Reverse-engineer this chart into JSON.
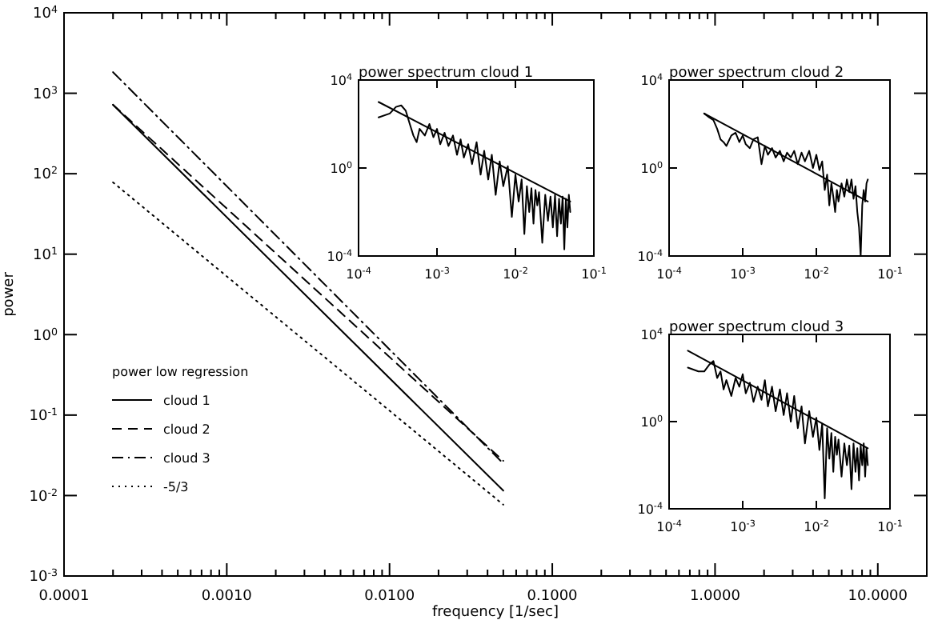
{
  "chart_data": [
    {
      "type": "line",
      "xlabel": "frequency [1/sec]",
      "ylabel": "power",
      "log": "xy",
      "xlim": [
        0.0001,
        20
      ],
      "ylim": [
        0.001,
        10000
      ],
      "xticks": [
        {
          "value": 0.0001,
          "label": "0.0001"
        },
        {
          "value": 0.0002,
          "label": null
        },
        {
          "value": 0.0003,
          "label": null
        },
        {
          "value": 0.0004,
          "label": null
        },
        {
          "value": 0.0005,
          "label": null
        },
        {
          "value": 0.0006,
          "label": null
        },
        {
          "value": 0.0007,
          "label": null
        },
        {
          "value": 0.0008,
          "label": null
        },
        {
          "value": 0.0009,
          "label": null
        },
        {
          "value": 0.001,
          "label": "0.0010"
        },
        {
          "value": 0.002,
          "label": null
        },
        {
          "value": 0.003,
          "label": null
        },
        {
          "value": 0.004,
          "label": null
        },
        {
          "value": 0.005,
          "label": null
        },
        {
          "value": 0.006,
          "label": null
        },
        {
          "value": 0.007,
          "label": null
        },
        {
          "value": 0.008,
          "label": null
        },
        {
          "value": 0.009,
          "label": null
        },
        {
          "value": 0.01,
          "label": "0.0100"
        },
        {
          "value": 0.02,
          "label": null
        },
        {
          "value": 0.03,
          "label": null
        },
        {
          "value": 0.04,
          "label": null
        },
        {
          "value": 0.05,
          "label": null
        },
        {
          "value": 0.06,
          "label": null
        },
        {
          "value": 0.07,
          "label": null
        },
        {
          "value": 0.08,
          "label": null
        },
        {
          "value": 0.09,
          "label": null
        },
        {
          "value": 0.1,
          "label": "0.1000"
        },
        {
          "value": 0.2,
          "label": null
        },
        {
          "value": 0.3,
          "label": null
        },
        {
          "value": 0.4,
          "label": null
        },
        {
          "value": 0.5,
          "label": null
        },
        {
          "value": 0.6,
          "label": null
        },
        {
          "value": 0.7,
          "label": null
        },
        {
          "value": 0.8,
          "label": null
        },
        {
          "value": 0.9,
          "label": null
        },
        {
          "value": 1,
          "label": "1.0000"
        },
        {
          "value": 2,
          "label": null
        },
        {
          "value": 3,
          "label": null
        },
        {
          "value": 4,
          "label": null
        },
        {
          "value": 5,
          "label": null
        },
        {
          "value": 6,
          "label": null
        },
        {
          "value": 7,
          "label": null
        },
        {
          "value": 8,
          "label": null
        },
        {
          "value": 9,
          "label": null
        },
        {
          "value": 10,
          "label": "10.0000"
        },
        {
          "value": 20,
          "label": null
        }
      ],
      "yticks": [
        {
          "value": 0.001,
          "label": "10$^{-3}$"
        },
        {
          "value": 0.01,
          "label": "10$^{-2}$"
        },
        {
          "value": 0.1,
          "label": "10$^{-1}$"
        },
        {
          "value": 1,
          "label": "10$^{0}$"
        },
        {
          "value": 10,
          "label": "10$^{1}$"
        },
        {
          "value": 100,
          "label": "10$^{2}$"
        },
        {
          "value": 1000,
          "label": "10$^{3}$"
        },
        {
          "value": 10000,
          "label": "10$^{4}$"
        }
      ],
      "legend": "bottom left",
      "legend_title": "power low regression",
      "series": [
        {
          "name": "cloud 1",
          "color": "#000000",
          "line_style": "solid",
          "x": [
            0.0002,
            0.05
          ],
          "values": [
            720,
            0.0115
          ]
        },
        {
          "name": "cloud 2",
          "color": "#000000",
          "line_style": "dashed",
          "x": [
            0.0002,
            0.05
          ],
          "values": [
            720,
            0.027
          ]
        },
        {
          "name": "cloud 3",
          "color": "#000000",
          "line_style": "dashdot",
          "x": [
            0.0002,
            0.05
          ],
          "values": [
            1830,
            0.025
          ]
        },
        {
          "name": "-5/3",
          "color": "#000000",
          "line_style": "dotted",
          "x": [
            0.0002,
            0.05
          ],
          "values": [
            78,
            0.0077
          ]
        }
      ]
    },
    {
      "type": "line",
      "title": "power spectrum cloud 1",
      "log": "xy",
      "xlim": [
        0.0001,
        0.1
      ],
      "ylim": [
        0.0001,
        10000
      ],
      "xticks": [
        {
          "value": 0.0001,
          "label": "10$^{-4}$"
        },
        {
          "value": 0.001,
          "label": "10$^{-3}$"
        },
        {
          "value": 0.01,
          "label": "10$^{-2}$"
        },
        {
          "value": 0.1,
          "label": "10$^{-1}$"
        }
      ],
      "yticks": [
        {
          "value": 0.0001,
          "label": "10$^{-4}$"
        },
        {
          "value": 1,
          "label": "10$^{0}$"
        },
        {
          "value": 10000,
          "label": "10$^{4}$"
        }
      ],
      "series": [
        {
          "color": "#000000",
          "line_style": "solid",
          "x": [
            0.00018,
            0.00025,
            0.0003,
            0.00035,
            0.0004,
            0.00045,
            0.0005,
            0.00055,
            0.0006,
            0.0007,
            0.0008,
            0.0009,
            0.001,
            0.0011,
            0.00125,
            0.0014,
            0.0016,
            0.0018,
            0.002,
            0.0022,
            0.0025,
            0.0028,
            0.0032,
            0.0036,
            0.004,
            0.0045,
            0.005,
            0.0056,
            0.0063,
            0.007,
            0.008,
            0.009,
            0.01,
            0.011,
            0.012,
            0.013,
            0.014,
            0.015,
            0.016,
            0.017,
            0.018,
            0.019,
            0.02,
            0.022,
            0.024,
            0.026,
            0.028,
            0.03,
            0.032,
            0.034,
            0.036,
            0.038,
            0.04,
            0.042,
            0.044,
            0.046,
            0.048,
            0.05
          ],
          "values": [
            200,
            300,
            600,
            700,
            400,
            100,
            30,
            15,
            60,
            30,
            100,
            25,
            60,
            12,
            40,
            10,
            30,
            4,
            20,
            3,
            12,
            1.5,
            15,
            0.5,
            6,
            0.3,
            4,
            0.06,
            2,
            0.15,
            1.2,
            0.006,
            0.5,
            0.03,
            0.3,
            0.001,
            0.15,
            0.01,
            0.12,
            0.003,
            0.1,
            0.02,
            0.08,
            0.0004,
            0.06,
            0.004,
            0.05,
            0.002,
            0.06,
            0.0008,
            0.04,
            0.003,
            0.05,
            0.0002,
            0.04,
            0.002,
            0.06,
            0.01
          ]
        },
        {
          "color": "#000000",
          "line_style": "solid",
          "x": [
            0.00018,
            0.05
          ],
          "values": [
            1000,
            0.03
          ]
        }
      ]
    },
    {
      "type": "line",
      "title": "power spectrum cloud 2",
      "log": "xy",
      "xlim": [
        0.0001,
        0.1
      ],
      "ylim": [
        0.0001,
        10000
      ],
      "xticks": [
        {
          "value": 0.0001,
          "label": "10$^{-4}$"
        },
        {
          "value": 0.001,
          "label": "10$^{-3}$"
        },
        {
          "value": 0.01,
          "label": "10$^{-2}$"
        },
        {
          "value": 0.1,
          "label": "10$^{-1}$"
        }
      ],
      "yticks": [
        {
          "value": 0.0001,
          "label": "10$^{-4}$"
        },
        {
          "value": 1,
          "label": "10$^{0}$"
        },
        {
          "value": 10000,
          "label": "10$^{4}$"
        }
      ],
      "series": [
        {
          "color": "#000000",
          "line_style": "solid",
          "x": [
            0.0003,
            0.00035,
            0.0004,
            0.00045,
            0.0005,
            0.00055,
            0.0006,
            0.0007,
            0.0008,
            0.0009,
            0.001,
            0.0011,
            0.00125,
            0.0014,
            0.0016,
            0.0018,
            0.002,
            0.0022,
            0.0025,
            0.0028,
            0.0032,
            0.0036,
            0.004,
            0.0045,
            0.005,
            0.0056,
            0.0063,
            0.007,
            0.008,
            0.009,
            0.01,
            0.011,
            0.012,
            0.013,
            0.014,
            0.015,
            0.016,
            0.017,
            0.018,
            0.019,
            0.02,
            0.022,
            0.024,
            0.026,
            0.028,
            0.03,
            0.032,
            0.034,
            0.036,
            0.038,
            0.04,
            0.042,
            0.044,
            0.046,
            0.048,
            0.05
          ],
          "values": [
            300,
            200,
            150,
            60,
            20,
            15,
            10,
            30,
            40,
            15,
            30,
            12,
            8,
            20,
            25,
            1.5,
            10,
            4,
            8,
            3,
            6,
            2,
            5,
            3,
            6,
            1.5,
            5,
            2,
            6,
            1,
            4,
            0.8,
            2,
            0.1,
            0.5,
            0.02,
            0.2,
            0.05,
            0.01,
            0.1,
            0.03,
            0.2,
            0.05,
            0.3,
            0.08,
            0.3,
            0.04,
            0.15,
            0.01,
            0.002,
            0.0001,
            0.02,
            0.1,
            0.03,
            0.2,
            0.3
          ]
        },
        {
          "color": "#000000",
          "line_style": "solid",
          "x": [
            0.0003,
            0.05
          ],
          "values": [
            300,
            0.03
          ]
        }
      ]
    },
    {
      "type": "line",
      "title": "power spectrum cloud 3",
      "log": "xy",
      "xlim": [
        0.0001,
        0.1
      ],
      "ylim": [
        0.0001,
        10000
      ],
      "xticks": [
        {
          "value": 0.0001,
          "label": "10$^{-4}$"
        },
        {
          "value": 0.001,
          "label": "10$^{-3}$"
        },
        {
          "value": 0.01,
          "label": "10$^{-2}$"
        },
        {
          "value": 0.1,
          "label": "10$^{-1}$"
        }
      ],
      "yticks": [
        {
          "value": 0.0001,
          "label": "10$^{-4}$"
        },
        {
          "value": 1,
          "label": "10$^{0}$"
        },
        {
          "value": 10000,
          "label": "10$^{4}$"
        }
      ],
      "series": [
        {
          "color": "#000000",
          "line_style": "solid",
          "x": [
            0.00018,
            0.00025,
            0.0003,
            0.00035,
            0.0004,
            0.00045,
            0.0005,
            0.00055,
            0.0006,
            0.0007,
            0.0008,
            0.0009,
            0.001,
            0.0011,
            0.00125,
            0.0014,
            0.0016,
            0.0018,
            0.002,
            0.0022,
            0.0025,
            0.0028,
            0.0032,
            0.0036,
            0.004,
            0.0045,
            0.005,
            0.0056,
            0.0063,
            0.007,
            0.008,
            0.009,
            0.01,
            0.011,
            0.012,
            0.013,
            0.014,
            0.015,
            0.016,
            0.017,
            0.018,
            0.019,
            0.02,
            0.022,
            0.024,
            0.026,
            0.028,
            0.03,
            0.032,
            0.034,
            0.036,
            0.038,
            0.04,
            0.042,
            0.044,
            0.046,
            0.048,
            0.05
          ],
          "values": [
            300,
            200,
            200,
            400,
            600,
            100,
            200,
            30,
            80,
            15,
            100,
            40,
            150,
            20,
            60,
            8,
            40,
            10,
            80,
            5,
            40,
            3,
            30,
            2,
            20,
            1,
            15,
            0.5,
            5,
            0.1,
            3,
            0.2,
            1.5,
            0.05,
            0.8,
            0.0003,
            0.5,
            0.02,
            0.3,
            0.005,
            0.2,
            0.03,
            0.15,
            0.003,
            0.1,
            0.01,
            0.08,
            0.0008,
            0.1,
            0.005,
            0.06,
            0.002,
            0.08,
            0.01,
            0.1,
            0.003,
            0.06,
            0.01
          ]
        },
        {
          "color": "#000000",
          "line_style": "solid",
          "x": [
            0.00018,
            0.05
          ],
          "values": [
            1800,
            0.06
          ]
        }
      ]
    }
  ]
}
